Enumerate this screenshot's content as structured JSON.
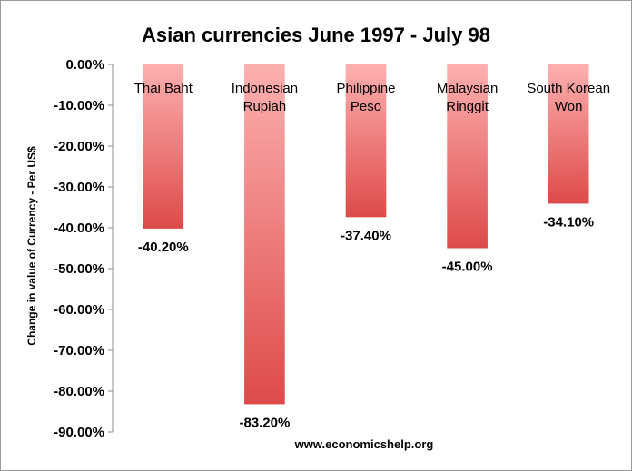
{
  "chart_data": {
    "type": "bar",
    "title": "Asian currencies June 1997 - July 98",
    "ylabel": "Change in value of Currency - Per US$",
    "xlabel": "",
    "source": "www.economicshelp.org",
    "categories": [
      [
        "Thai Baht"
      ],
      [
        "Indonesian",
        "Rupiah"
      ],
      [
        "Philippine",
        "Peso"
      ],
      [
        "Malaysian",
        "Ringgit"
      ],
      [
        "South Korean",
        "Won"
      ]
    ],
    "values": [
      -40.2,
      -83.2,
      -37.4,
      -45.0,
      -34.1
    ],
    "data_labels": [
      "-40.20%",
      "-83.20%",
      "-37.40%",
      "-45.00%",
      "-34.10%"
    ],
    "ylim": [
      -90,
      0
    ],
    "yticks": [
      0,
      -10,
      -20,
      -30,
      -40,
      -50,
      -60,
      -70,
      -80,
      -90
    ],
    "ytick_labels": [
      "0.00%",
      "-10.00%",
      "-20.00%",
      "-30.00%",
      "-40.00%",
      "-50.00%",
      "-60.00%",
      "-70.00%",
      "-80.00%",
      "-90.00%"
    ],
    "grid": false,
    "legend": "none",
    "colors": {
      "bar_top": "#fdb0b0",
      "bar_bottom": "#de4a4a",
      "axis": "#8c8c8c"
    }
  }
}
